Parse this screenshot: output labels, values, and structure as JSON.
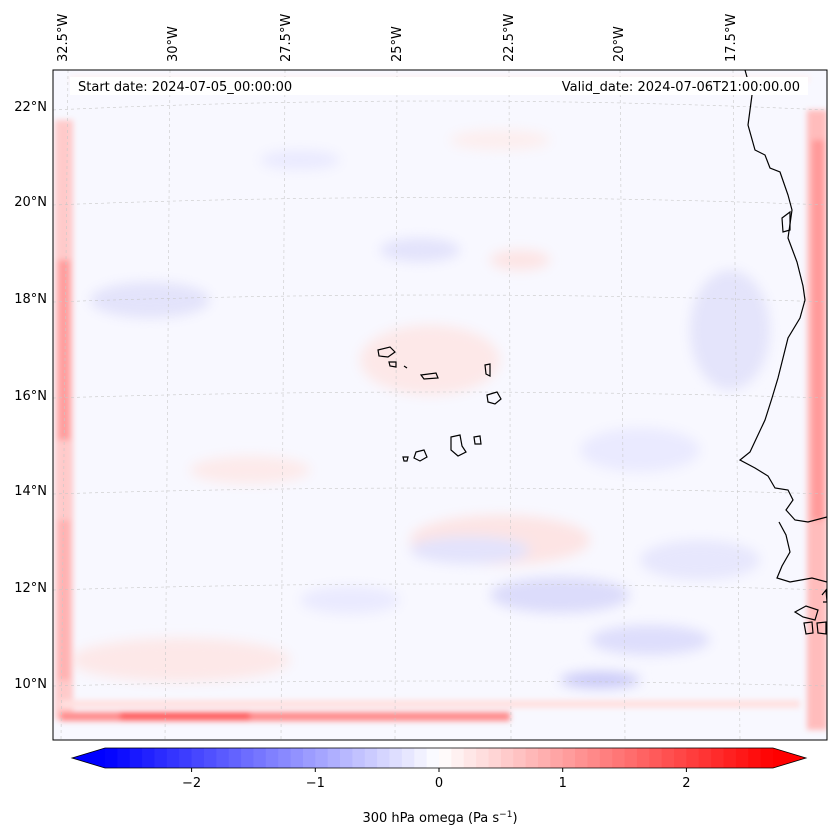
{
  "map": {
    "start_date_label": "Start date: 2024-07-05_00:00:00",
    "valid_date_label": "Valid_date: 2024-07-06T21:00:00.00",
    "lon_ticks": [
      "32.5°W",
      "30°W",
      "27.5°W",
      "25°W",
      "22.5°W",
      "20°W",
      "17.5°W"
    ],
    "lat_ticks": [
      "22°N",
      "20°N",
      "18°N",
      "16°N",
      "14°N",
      "12°N",
      "10°N"
    ],
    "region": "Cape Verde Islands and West African coast",
    "colors": {
      "negative": "#0000ff",
      "zero": "#ffffff",
      "positive": "#ff0000",
      "coastline": "#000000",
      "gridline": "#c8c8c8"
    }
  },
  "colorbar": {
    "label": "300 hPa omega (Pa s",
    "label_exponent": "−1",
    "label_close": ")",
    "min": -2.7,
    "max": 2.7,
    "ticks": [
      {
        "value": -2,
        "label": "−2"
      },
      {
        "value": -1,
        "label": "−1"
      },
      {
        "value": 0,
        "label": "0"
      },
      {
        "value": 1,
        "label": "1"
      },
      {
        "value": 2,
        "label": "2"
      }
    ],
    "levels": 54
  }
}
